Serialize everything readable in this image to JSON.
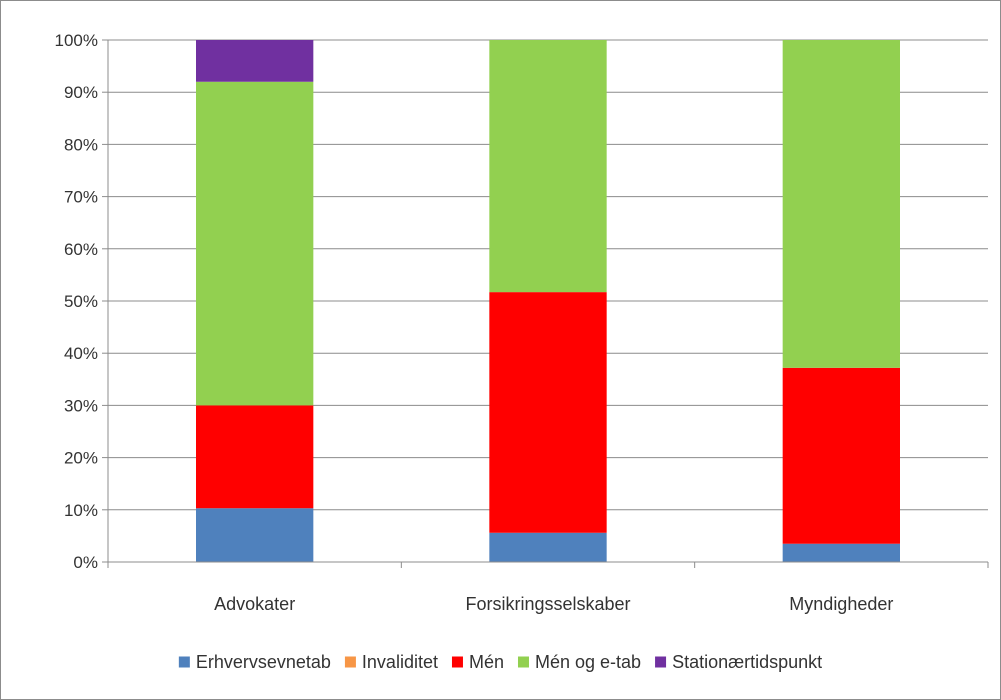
{
  "chart_data": {
    "type": "bar",
    "stacked": true,
    "percent_stacked": true,
    "categories": [
      "Advokater",
      "Forsikringsselskaber",
      "Myndigheder"
    ],
    "series": [
      {
        "name": "Erhvervsevnetab",
        "color": "#4f81bd",
        "values": [
          10.3,
          5.6,
          3.5
        ]
      },
      {
        "name": "Invaliditet",
        "color": "#f79646",
        "values": [
          0,
          0,
          0
        ]
      },
      {
        "name": "Mén",
        "color": "#ff0000",
        "values": [
          19.7,
          46.1,
          33.7
        ]
      },
      {
        "name": "Mén og e-tab",
        "color": "#92d050",
        "values": [
          62.0,
          48.3,
          62.8
        ]
      },
      {
        "name": "Stationærtidspunkt",
        "color": "#7030a0",
        "values": [
          8.0,
          0,
          0
        ]
      }
    ],
    "yticks": [
      "0%",
      "10%",
      "20%",
      "30%",
      "40%",
      "50%",
      "60%",
      "70%",
      "80%",
      "90%",
      "100%"
    ],
    "ylim": [
      0,
      100
    ],
    "grid": true,
    "legend_position": "bottom",
    "title": "",
    "xlabel": "",
    "ylabel": ""
  }
}
